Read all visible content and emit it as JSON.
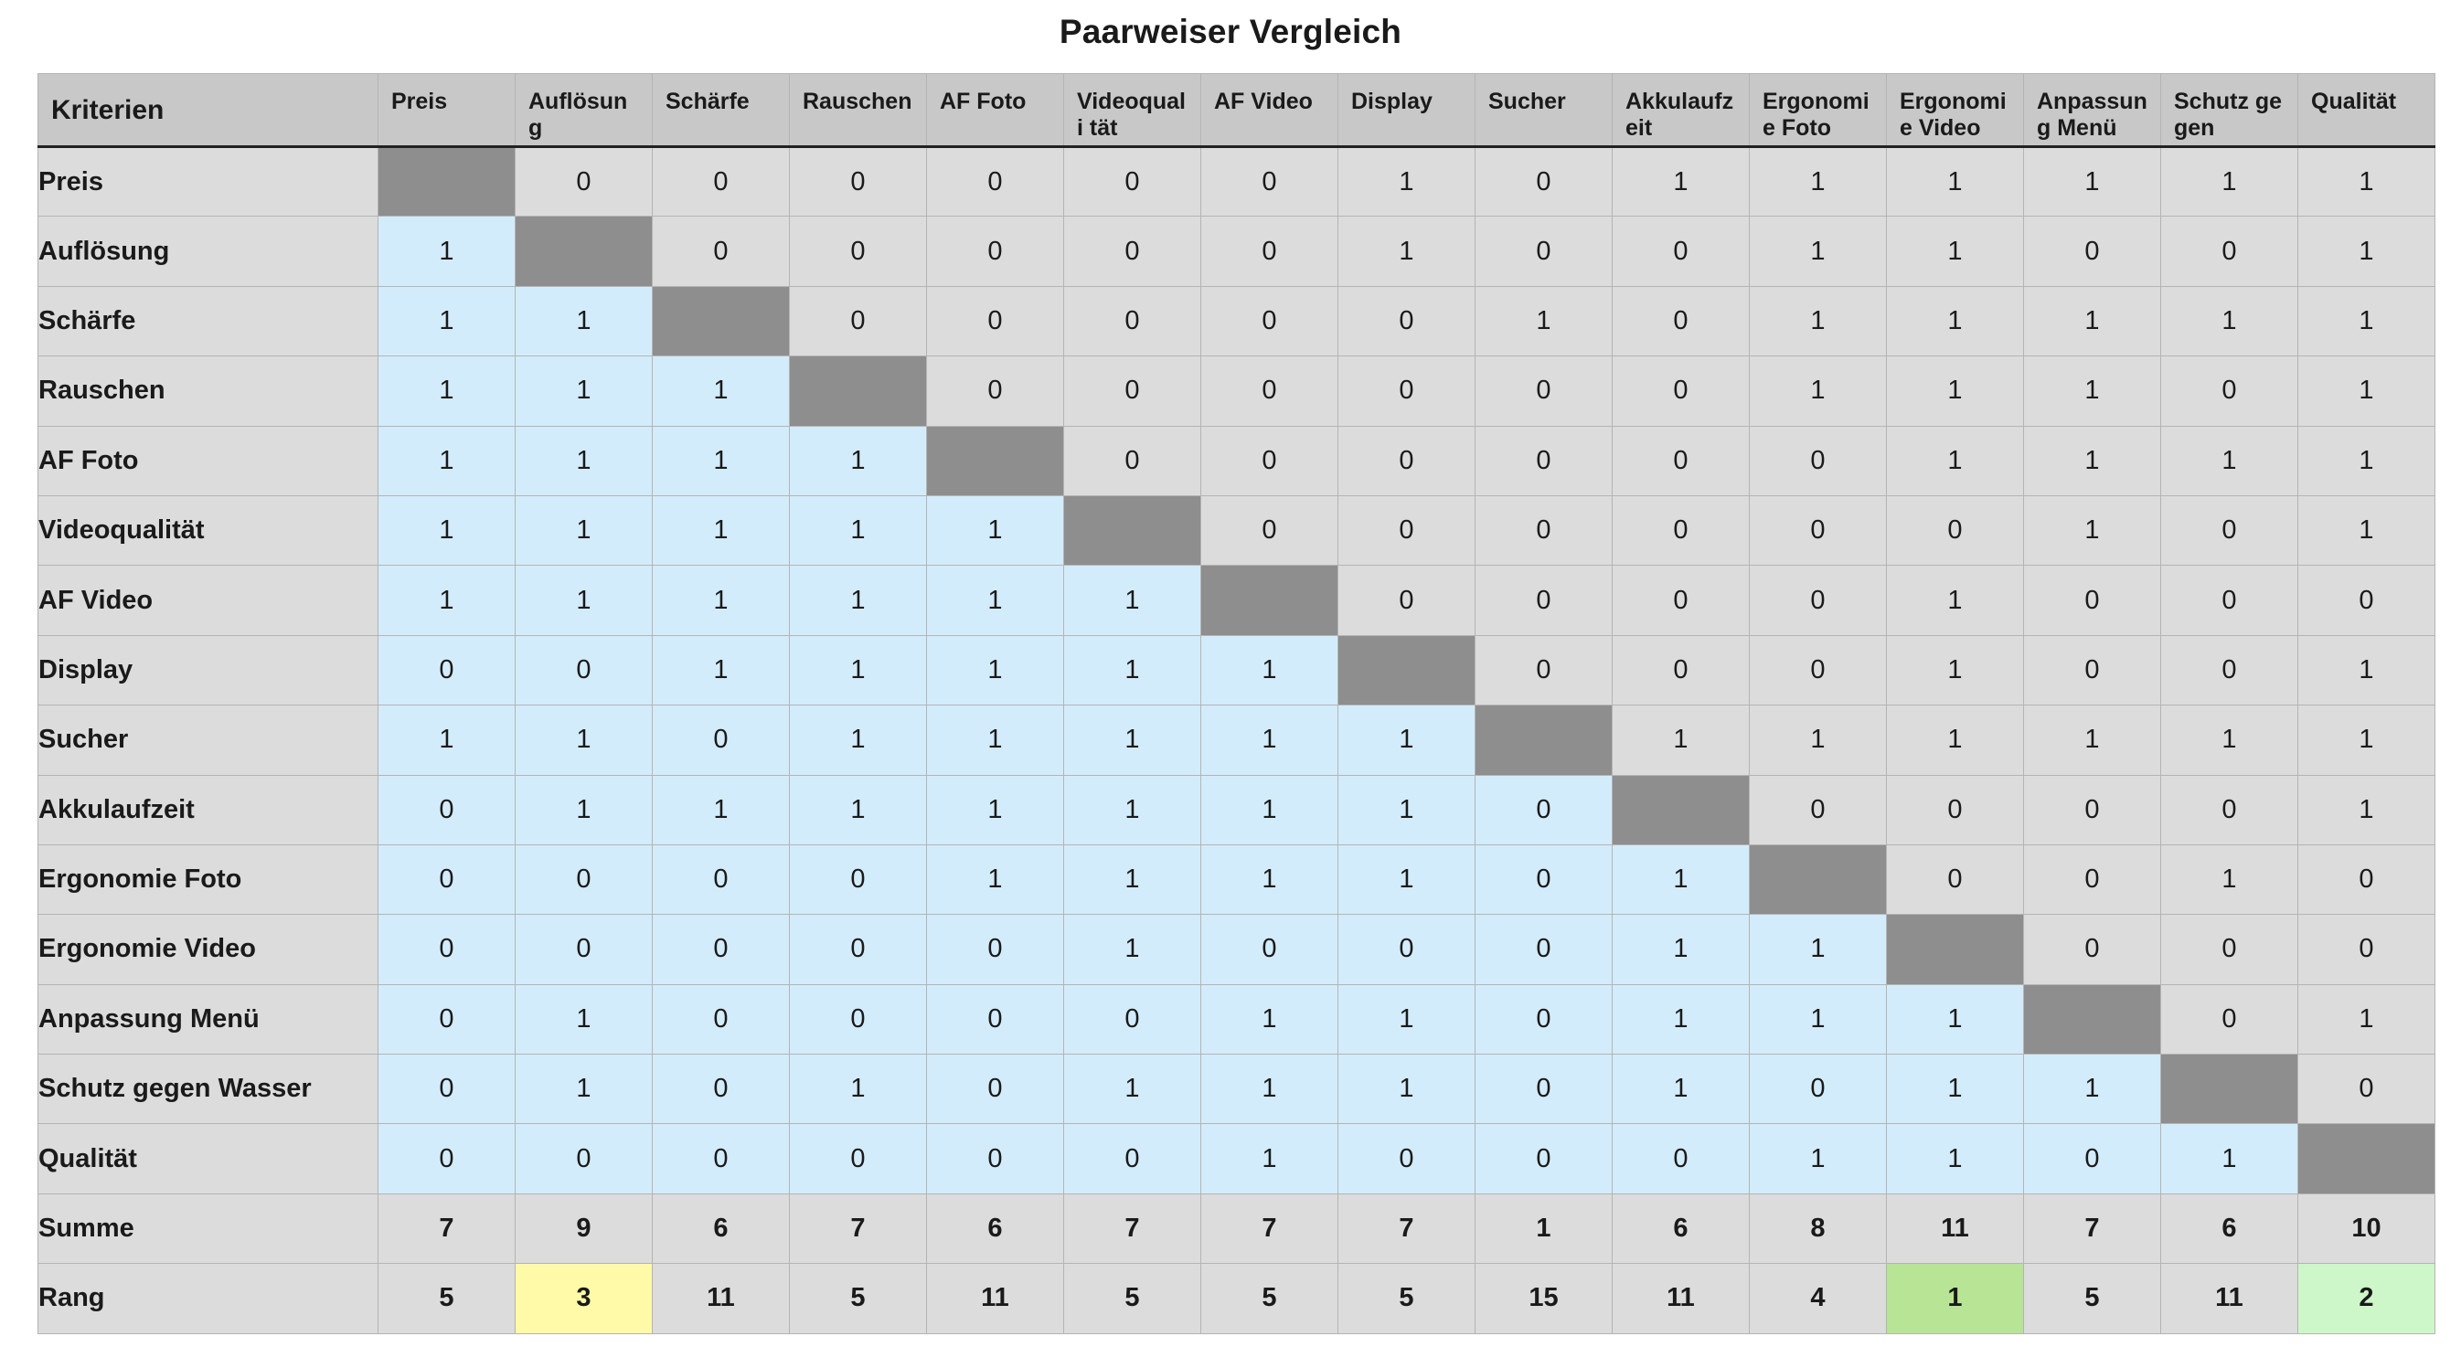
{
  "title": "Paarweiser Vergleich",
  "header_label": "Kriterien",
  "columns": [
    "Preis",
    "Auflösung",
    "Schärfe",
    "Rauschen",
    "AF Foto",
    "Videoquali tät",
    "AF Video",
    "Display",
    "Sucher",
    "Akkulaufz eit",
    "Ergonomi e Foto",
    "Ergonomi e Video",
    "Anpassun g Menü",
    "Schutz gegen",
    "Qualität"
  ],
  "rows": [
    {
      "label": "Preis",
      "values": [
        null,
        0,
        0,
        0,
        0,
        0,
        0,
        1,
        0,
        1,
        1,
        1,
        1,
        1,
        1
      ]
    },
    {
      "label": "Auflösung",
      "values": [
        1,
        null,
        0,
        0,
        0,
        0,
        0,
        1,
        0,
        0,
        1,
        1,
        0,
        0,
        1
      ]
    },
    {
      "label": "Schärfe",
      "values": [
        1,
        1,
        null,
        0,
        0,
        0,
        0,
        0,
        1,
        0,
        1,
        1,
        1,
        1,
        1
      ]
    },
    {
      "label": "Rauschen",
      "values": [
        1,
        1,
        1,
        null,
        0,
        0,
        0,
        0,
        0,
        0,
        1,
        1,
        1,
        0,
        1
      ]
    },
    {
      "label": "AF Foto",
      "values": [
        1,
        1,
        1,
        1,
        null,
        0,
        0,
        0,
        0,
        0,
        0,
        1,
        1,
        1,
        1
      ]
    },
    {
      "label": "Videoqualität",
      "values": [
        1,
        1,
        1,
        1,
        1,
        null,
        0,
        0,
        0,
        0,
        0,
        0,
        1,
        0,
        1
      ]
    },
    {
      "label": "AF Video",
      "values": [
        1,
        1,
        1,
        1,
        1,
        1,
        null,
        0,
        0,
        0,
        0,
        1,
        0,
        0,
        0
      ]
    },
    {
      "label": "Display",
      "values": [
        0,
        0,
        1,
        1,
        1,
        1,
        1,
        null,
        0,
        0,
        0,
        1,
        0,
        0,
        1
      ]
    },
    {
      "label": "Sucher",
      "values": [
        1,
        1,
        0,
        1,
        1,
        1,
        1,
        1,
        null,
        1,
        1,
        1,
        1,
        1,
        1
      ]
    },
    {
      "label": "Akkulaufzeit",
      "values": [
        0,
        1,
        1,
        1,
        1,
        1,
        1,
        1,
        0,
        null,
        0,
        0,
        0,
        0,
        1
      ]
    },
    {
      "label": "Ergonomie Foto",
      "values": [
        0,
        0,
        0,
        0,
        1,
        1,
        1,
        1,
        0,
        1,
        null,
        0,
        0,
        1,
        0
      ]
    },
    {
      "label": "Ergonomie Video",
      "values": [
        0,
        0,
        0,
        0,
        0,
        1,
        0,
        0,
        0,
        1,
        1,
        null,
        0,
        0,
        0
      ]
    },
    {
      "label": "Anpassung Menü",
      "values": [
        0,
        1,
        0,
        0,
        0,
        0,
        1,
        1,
        0,
        1,
        1,
        1,
        null,
        0,
        1
      ]
    },
    {
      "label": "Schutz gegen Wasser",
      "values": [
        0,
        1,
        0,
        1,
        0,
        1,
        1,
        1,
        0,
        1,
        0,
        1,
        1,
        null,
        0
      ]
    },
    {
      "label": "Qualität",
      "values": [
        0,
        0,
        0,
        0,
        0,
        0,
        1,
        0,
        0,
        0,
        1,
        1,
        0,
        1,
        null
      ]
    }
  ],
  "summe": {
    "label": "Summe",
    "values": [
      7,
      9,
      6,
      7,
      6,
      7,
      7,
      7,
      1,
      6,
      8,
      11,
      7,
      6,
      10
    ]
  },
  "rang": {
    "label": "Rang",
    "values": [
      5,
      3,
      11,
      5,
      11,
      5,
      5,
      5,
      15,
      11,
      4,
      1,
      5,
      11,
      2
    ]
  },
  "colors": {
    "lower_triangle": "#d3ecfb",
    "upper_triangle": "#dcdcdc",
    "diagonal": "#8e8e8e",
    "rank_1": "#b8e495",
    "rank_2": "#cdf7c8",
    "rank_3": "#fffaa7"
  }
}
